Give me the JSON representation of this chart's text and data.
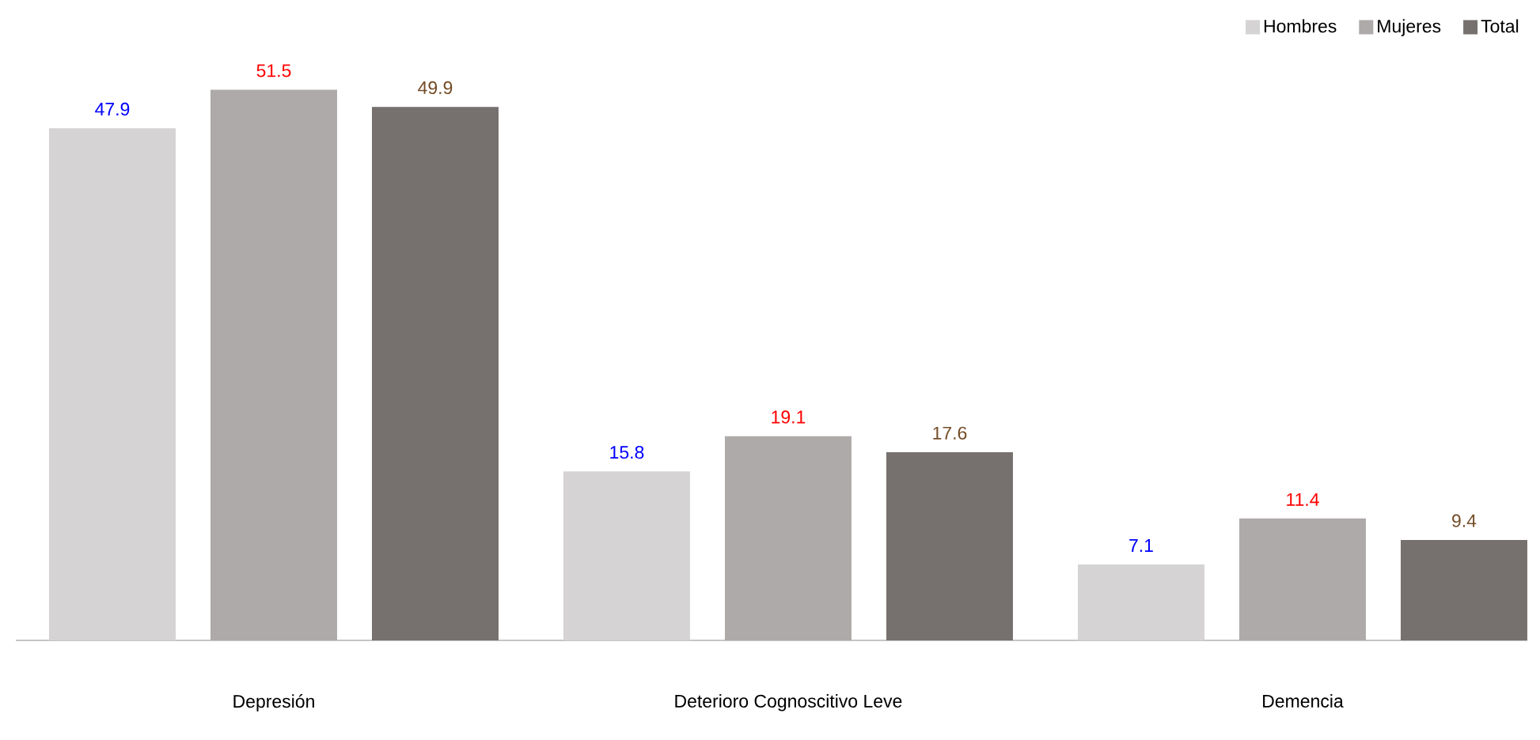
{
  "chart_data": {
    "type": "bar",
    "categories": [
      "Depresión",
      "Deterioro Cognoscitivo Leve",
      "Demencia"
    ],
    "series": [
      {
        "name": "Hombres",
        "color": "#d5d3d4",
        "values": [
          47.9,
          15.8,
          7.1
        ]
      },
      {
        "name": "Mujeres",
        "color": "#aeaaa9",
        "values": [
          51.5,
          19.1,
          11.4
        ]
      },
      {
        "name": "Total",
        "color": "#76716f",
        "values": [
          49.9,
          17.6,
          9.4
        ]
      }
    ],
    "data_labels": true,
    "legend": "top right"
  }
}
